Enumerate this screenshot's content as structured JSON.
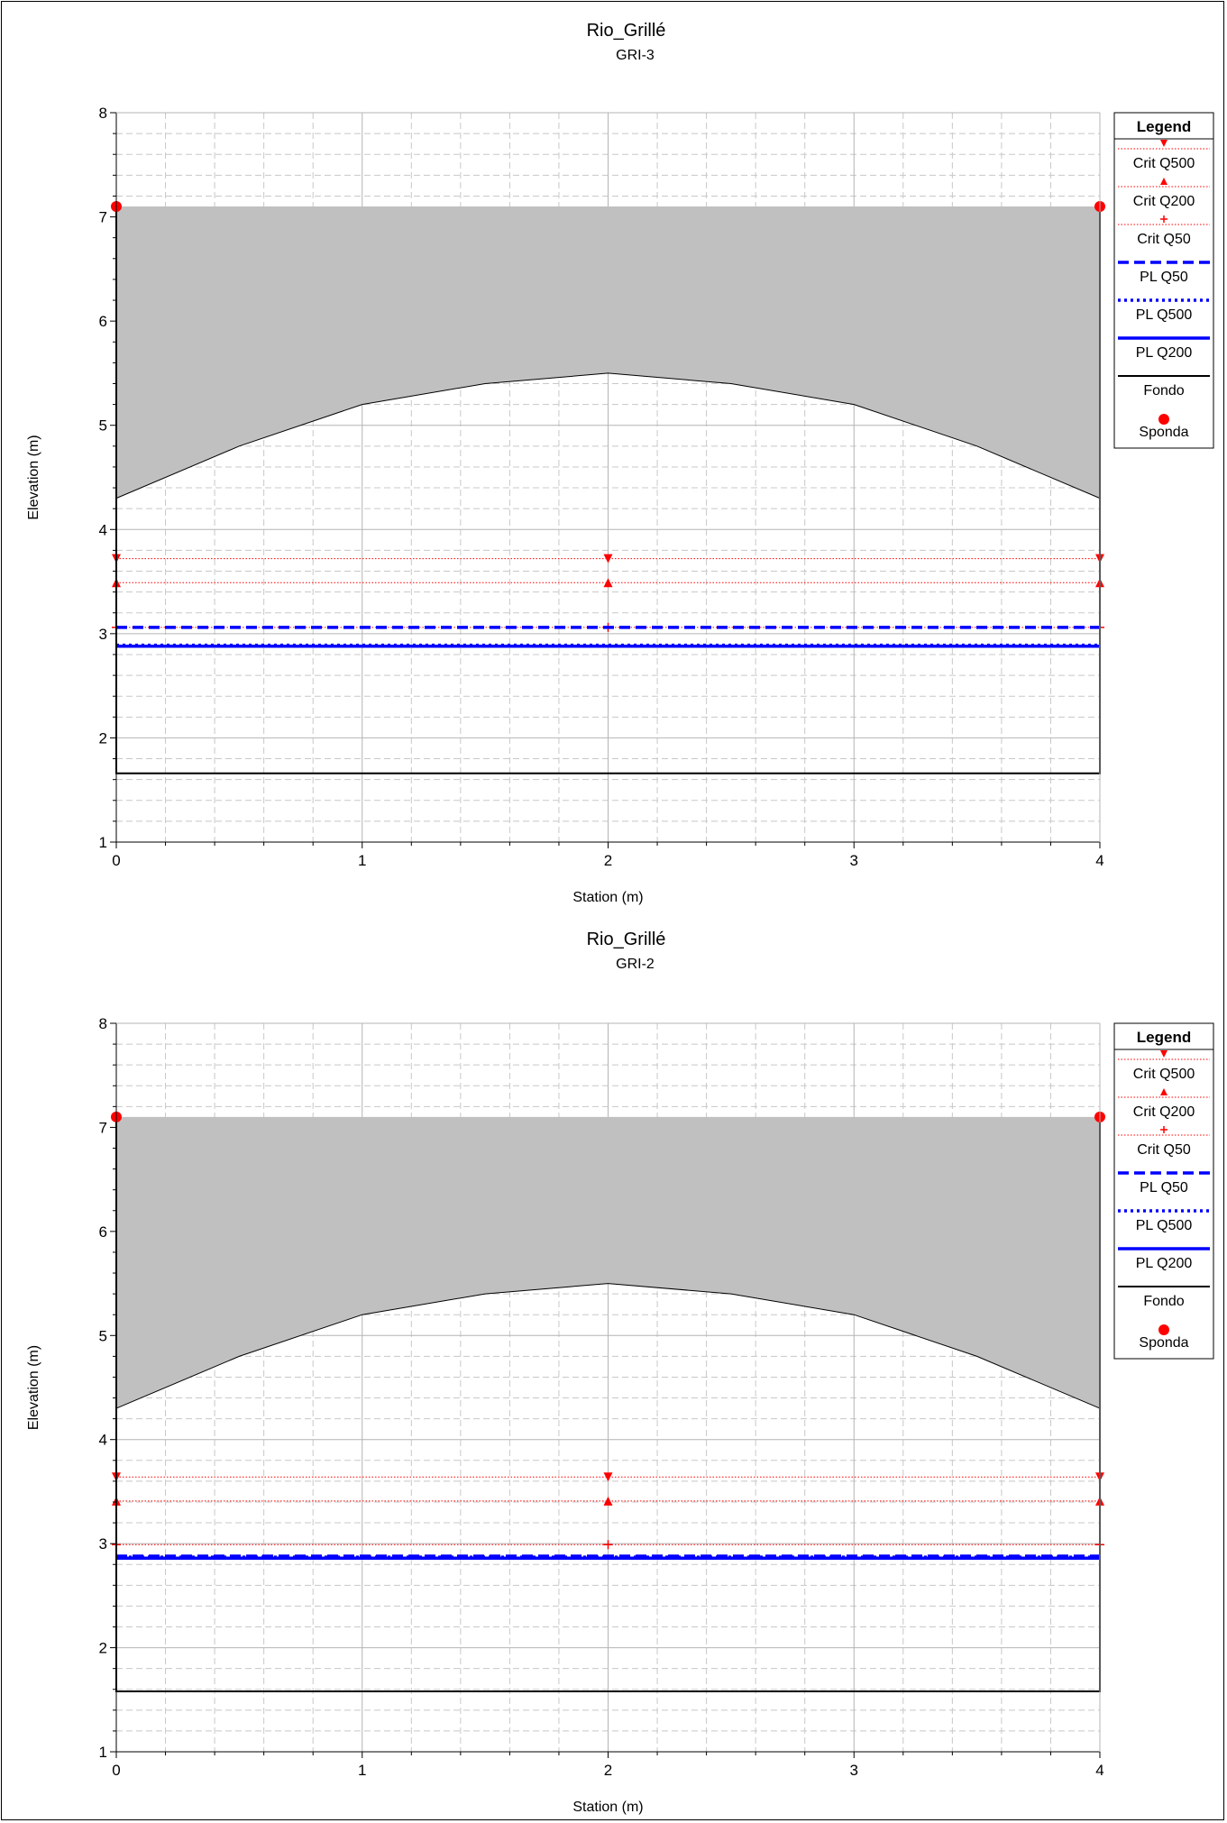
{
  "chart_data": [
    {
      "type": "line",
      "title": "Rio_Grillé",
      "subtitle": "GRI-3",
      "xlabel": "Station (m)",
      "ylabel": "Elevation (m)",
      "xlim": [
        0,
        4
      ],
      "ylim": [
        1,
        8
      ],
      "xticks": [
        "0",
        "1",
        "2",
        "3",
        "4"
      ],
      "yticks": [
        "1",
        "2",
        "3",
        "4",
        "5",
        "6",
        "7",
        "8"
      ],
      "grid": true,
      "legend_position": "right",
      "legend_title": "Legend",
      "deck": {
        "top": 7.1,
        "underside": [
          [
            0,
            4.3
          ],
          [
            0.5,
            4.8
          ],
          [
            1,
            5.2
          ],
          [
            1.5,
            5.4
          ],
          [
            2,
            5.5
          ],
          [
            2.5,
            5.4
          ],
          [
            3,
            5.2
          ],
          [
            3.5,
            4.8
          ],
          [
            4,
            4.3
          ]
        ]
      },
      "series": [
        {
          "name": "Crit Q500",
          "x": [
            0,
            2,
            4
          ],
          "y": [
            3.72,
            3.72,
            3.72
          ],
          "color": "#ff0000",
          "style": "dotted",
          "marker": "triangle-down"
        },
        {
          "name": "Crit Q200",
          "x": [
            0,
            2,
            4
          ],
          "y": [
            3.49,
            3.49,
            3.49
          ],
          "color": "#ff0000",
          "style": "dotted",
          "marker": "triangle-up"
        },
        {
          "name": "Crit Q50",
          "x": [
            0,
            2,
            4
          ],
          "y": [
            3.06,
            3.06,
            3.06
          ],
          "color": "#ff0000",
          "style": "dotted",
          "marker": "plus"
        },
        {
          "name": "PL Q50",
          "x": [
            0,
            4
          ],
          "y": [
            3.06,
            3.06
          ],
          "color": "#0000ff",
          "style": "dashed"
        },
        {
          "name": "PL Q500",
          "x": [
            0,
            4
          ],
          "y": [
            2.89,
            2.89
          ],
          "color": "#0000ff",
          "style": "dotted"
        },
        {
          "name": "PL Q200",
          "x": [
            0,
            4
          ],
          "y": [
            2.88,
            2.88
          ],
          "color": "#0000ff",
          "style": "solid"
        },
        {
          "name": "Fondo",
          "x": [
            0,
            0,
            4,
            4
          ],
          "y": [
            7.1,
            1.66,
            1.66,
            7.1
          ],
          "color": "#000000",
          "style": "solid"
        },
        {
          "name": "Sponda",
          "x": [
            0,
            4
          ],
          "y": [
            7.1,
            7.1
          ],
          "color": "#ff0000",
          "style": "none",
          "marker": "circle"
        }
      ]
    },
    {
      "type": "line",
      "title": "Rio_Grillé",
      "subtitle": "GRI-2",
      "xlabel": "Station (m)",
      "ylabel": "Elevation (m)",
      "xlim": [
        0,
        4
      ],
      "ylim": [
        1,
        8
      ],
      "xticks": [
        "0",
        "1",
        "2",
        "3",
        "4"
      ],
      "yticks": [
        "1",
        "2",
        "3",
        "4",
        "5",
        "6",
        "7",
        "8"
      ],
      "grid": true,
      "legend_position": "right",
      "legend_title": "Legend",
      "deck": {
        "top": 7.1,
        "underside": [
          [
            0,
            4.3
          ],
          [
            0.5,
            4.8
          ],
          [
            1,
            5.2
          ],
          [
            1.5,
            5.4
          ],
          [
            2,
            5.5
          ],
          [
            2.5,
            5.4
          ],
          [
            3,
            5.2
          ],
          [
            3.5,
            4.8
          ],
          [
            4,
            4.3
          ]
        ]
      },
      "series": [
        {
          "name": "Crit Q500",
          "x": [
            0,
            2,
            4
          ],
          "y": [
            3.64,
            3.64,
            3.64
          ],
          "color": "#ff0000",
          "style": "dotted",
          "marker": "triangle-down"
        },
        {
          "name": "Crit Q200",
          "x": [
            0,
            2,
            4
          ],
          "y": [
            3.41,
            3.41,
            3.41
          ],
          "color": "#ff0000",
          "style": "dotted",
          "marker": "triangle-up"
        },
        {
          "name": "Crit Q50",
          "x": [
            0,
            2,
            4
          ],
          "y": [
            2.99,
            2.99,
            2.99
          ],
          "color": "#ff0000",
          "style": "dotted",
          "marker": "plus"
        },
        {
          "name": "PL Q50",
          "x": [
            0,
            4
          ],
          "y": [
            2.88,
            2.88
          ],
          "color": "#0000ff",
          "style": "dashed"
        },
        {
          "name": "PL Q500",
          "x": [
            0,
            4
          ],
          "y": [
            2.87,
            2.87
          ],
          "color": "#0000ff",
          "style": "dotted"
        },
        {
          "name": "PL Q200",
          "x": [
            0,
            4
          ],
          "y": [
            2.86,
            2.86
          ],
          "color": "#0000ff",
          "style": "solid"
        },
        {
          "name": "Fondo",
          "x": [
            0,
            0,
            4,
            4
          ],
          "y": [
            7.1,
            1.58,
            1.58,
            7.1
          ],
          "color": "#000000",
          "style": "solid"
        },
        {
          "name": "Sponda",
          "x": [
            0,
            4
          ],
          "y": [
            7.1,
            7.1
          ],
          "color": "#ff0000",
          "style": "none",
          "marker": "circle"
        }
      ]
    }
  ]
}
